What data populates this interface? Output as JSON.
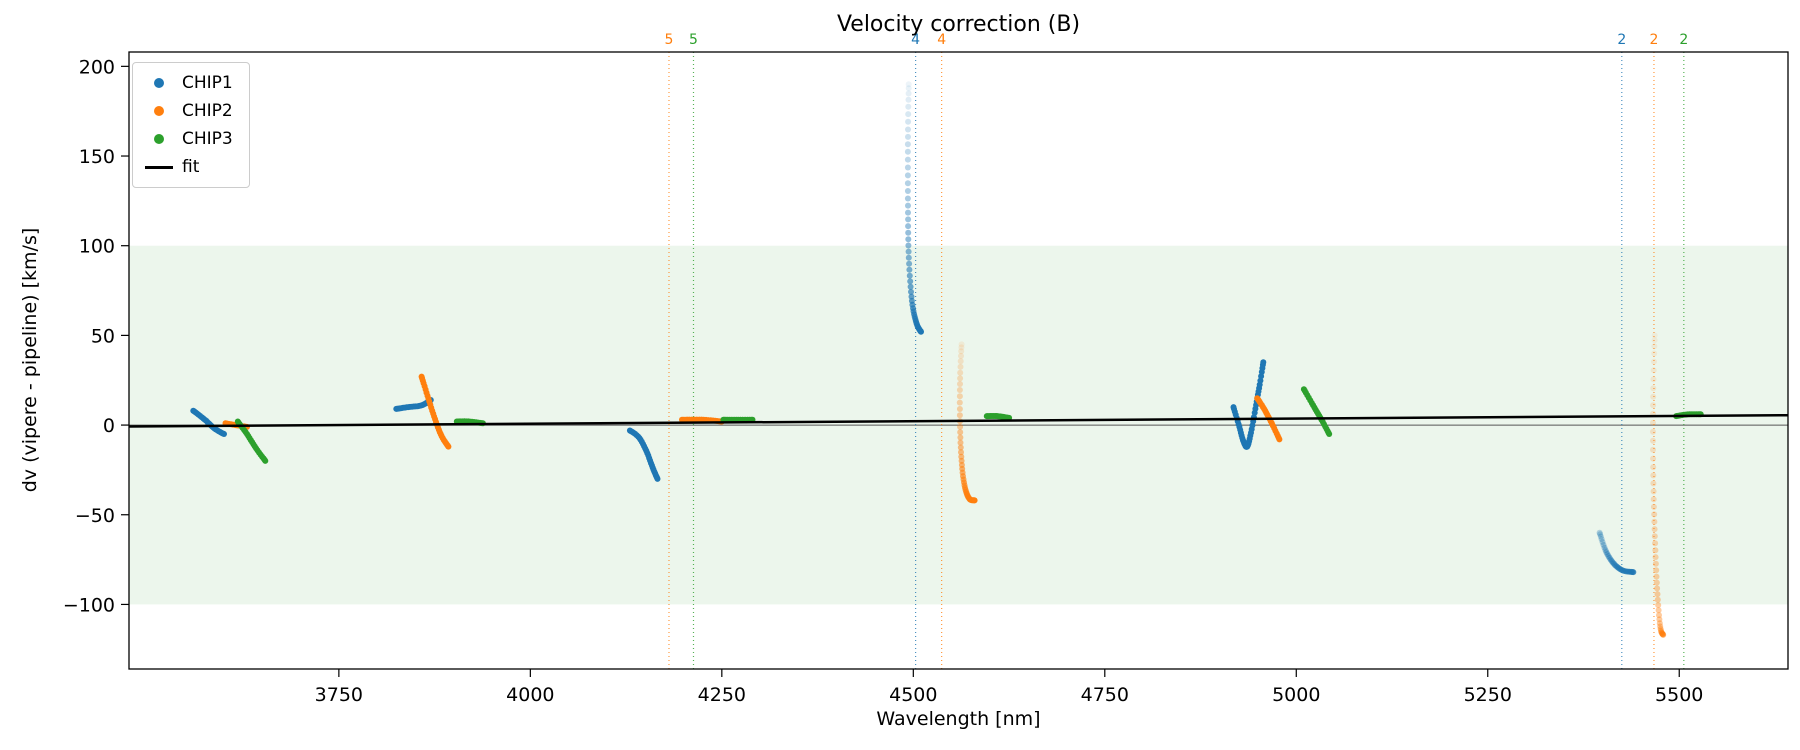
{
  "chart_data": {
    "type": "scatter",
    "title": "Velocity correction (B)",
    "xlabel": "Wavelength [nm]",
    "ylabel": "dv (vipere - pipeline) [km/s]",
    "xlim": [
      3476,
      5642
    ],
    "ylim": [
      -136,
      208
    ],
    "xticks": [
      3750,
      4000,
      4250,
      4500,
      4750,
      5000,
      5250,
      5500
    ],
    "yticks": [
      -100,
      -50,
      0,
      50,
      100,
      150,
      200
    ],
    "grid": false,
    "legend_position": "upper-left",
    "band": {
      "y0": -100,
      "y1": 100,
      "color": "rgba(44,160,44,0.09)"
    },
    "zero_line": {
      "y": 0,
      "color": "#555555",
      "width": 1
    },
    "fit_line": {
      "label": "fit",
      "color": "#000000",
      "width": 2.5,
      "points": [
        [
          3476,
          -0.8
        ],
        [
          5642,
          5.5
        ]
      ]
    },
    "vlines": [
      {
        "x": 4181,
        "label": "5",
        "color": "#ff7f0e"
      },
      {
        "x": 4213,
        "label": "5",
        "color": "#2ca02c"
      },
      {
        "x": 4503,
        "label": "4",
        "color": "#1f77b4"
      },
      {
        "x": 4537,
        "label": "4",
        "color": "#ff7f0e"
      },
      {
        "x": 5425,
        "label": "2",
        "color": "#1f77b4"
      },
      {
        "x": 5467,
        "label": "2",
        "color": "#ff7f0e"
      },
      {
        "x": 5506,
        "label": "2",
        "color": "#2ca02c"
      }
    ],
    "legend": {
      "items": [
        {
          "label": "CHIP1",
          "color": "#1f77b4",
          "marker": "dot"
        },
        {
          "label": "CHIP2",
          "color": "#ff7f0e",
          "marker": "dot"
        },
        {
          "label": "CHIP3",
          "color": "#2ca02c",
          "marker": "dot"
        },
        {
          "label": "fit",
          "color": "#000000",
          "marker": "line"
        }
      ]
    },
    "series": [
      {
        "name": "CHIP1",
        "color": "#1f77b4",
        "clusters": [
          {
            "ctrl": [
              [
                3560,
                8
              ],
              [
                3575,
                3
              ],
              [
                3588,
                -2
              ],
              [
                3600,
                -5
              ]
            ],
            "n": 25,
            "alpha": [
              1,
              1
            ]
          },
          {
            "ctrl": [
              [
                3825,
                9
              ],
              [
                3840,
                10
              ],
              [
                3858,
                11
              ],
              [
                3870,
                14
              ]
            ],
            "n": 24,
            "alpha": [
              1,
              1
            ]
          },
          {
            "ctrl": [
              [
                4130,
                -3
              ],
              [
                4142,
                -7
              ],
              [
                4152,
                -15
              ],
              [
                4160,
                -24
              ],
              [
                4166,
                -30
              ]
            ],
            "n": 28,
            "alpha": [
              1,
              1
            ]
          },
          {
            "ctrl": [
              [
                4494,
                190
              ],
              [
                4493,
                160
              ],
              [
                4493,
                125
              ],
              [
                4494,
                95
              ],
              [
                4498,
                70
              ],
              [
                4504,
                57
              ],
              [
                4510,
                52
              ]
            ],
            "n": 50,
            "alpha": [
              0.08,
              1
            ]
          },
          {
            "ctrl": [
              [
                4918,
                10
              ],
              [
                4925,
                0
              ],
              [
                4931,
                -9
              ],
              [
                4936,
                -12
              ],
              [
                4941,
                -4
              ],
              [
                4947,
                10
              ],
              [
                4952,
                22
              ],
              [
                4957,
                35
              ]
            ],
            "n": 45,
            "alpha": [
              1,
              1
            ]
          },
          {
            "ctrl": [
              [
                5396,
                -60
              ],
              [
                5404,
                -70
              ],
              [
                5414,
                -77
              ],
              [
                5426,
                -81
              ],
              [
                5440,
                -82
              ]
            ],
            "n": 30,
            "alpha": [
              0.3,
              0.8
            ]
          }
        ]
      },
      {
        "name": "CHIP2",
        "color": "#ff7f0e",
        "clusters": [
          {
            "ctrl": [
              [
                3602,
                1
              ],
              [
                3615,
                0
              ],
              [
                3630,
                -1
              ]
            ],
            "n": 14,
            "alpha": [
              1,
              1
            ]
          },
          {
            "ctrl": [
              [
                3858,
                27
              ],
              [
                3866,
                16
              ],
              [
                3875,
                4
              ],
              [
                3884,
                -6
              ],
              [
                3893,
                -12
              ]
            ],
            "n": 30,
            "alpha": [
              1,
              1
            ]
          },
          {
            "ctrl": [
              [
                4198,
                3
              ],
              [
                4225,
                3
              ],
              [
                4250,
                2
              ]
            ],
            "n": 20,
            "alpha": [
              1,
              1
            ]
          },
          {
            "ctrl": [
              [
                4563,
                45
              ],
              [
                4561,
                25
              ],
              [
                4561,
                0
              ],
              [
                4563,
                -20
              ],
              [
                4567,
                -34
              ],
              [
                4573,
                -41
              ],
              [
                4580,
                -42
              ]
            ],
            "n": 45,
            "alpha": [
              0.1,
              1
            ]
          },
          {
            "ctrl": [
              [
                4949,
                15
              ],
              [
                4958,
                9
              ],
              [
                4968,
                1
              ],
              [
                4978,
                -8
              ]
            ],
            "n": 22,
            "alpha": [
              1,
              1
            ]
          },
          {
            "ctrl": [
              [
                5468,
                50
              ],
              [
                5466,
                15
              ],
              [
                5466,
                -25
              ],
              [
                5468,
                -60
              ],
              [
                5471,
                -90
              ],
              [
                5475,
                -112
              ],
              [
                5479,
                -117
              ]
            ],
            "n": 50,
            "alpha": [
              0.08,
              0.5
            ]
          }
        ]
      },
      {
        "name": "CHIP3",
        "color": "#2ca02c",
        "clusters": [
          {
            "ctrl": [
              [
                3618,
                2
              ],
              [
                3630,
                -5
              ],
              [
                3642,
                -13
              ],
              [
                3654,
                -20
              ]
            ],
            "n": 22,
            "alpha": [
              1,
              1
            ]
          },
          {
            "ctrl": [
              [
                3904,
                2
              ],
              [
                3920,
                2
              ],
              [
                3938,
                1
              ]
            ],
            "n": 16,
            "alpha": [
              1,
              1
            ]
          },
          {
            "ctrl": [
              [
                4252,
                3
              ],
              [
                4270,
                3
              ],
              [
                4290,
                3
              ]
            ],
            "n": 16,
            "alpha": [
              1,
              1
            ]
          },
          {
            "ctrl": [
              [
                4596,
                5
              ],
              [
                4610,
                5
              ],
              [
                4625,
                4
              ]
            ],
            "n": 16,
            "alpha": [
              1,
              1
            ]
          },
          {
            "ctrl": [
              [
                5010,
                20
              ],
              [
                5022,
                11
              ],
              [
                5033,
                3
              ],
              [
                5043,
                -5
              ]
            ],
            "n": 22,
            "alpha": [
              1,
              1
            ]
          },
          {
            "ctrl": [
              [
                5496,
                5
              ],
              [
                5512,
                6
              ],
              [
                5528,
                6
              ]
            ],
            "n": 16,
            "alpha": [
              1,
              1
            ]
          }
        ]
      }
    ]
  }
}
